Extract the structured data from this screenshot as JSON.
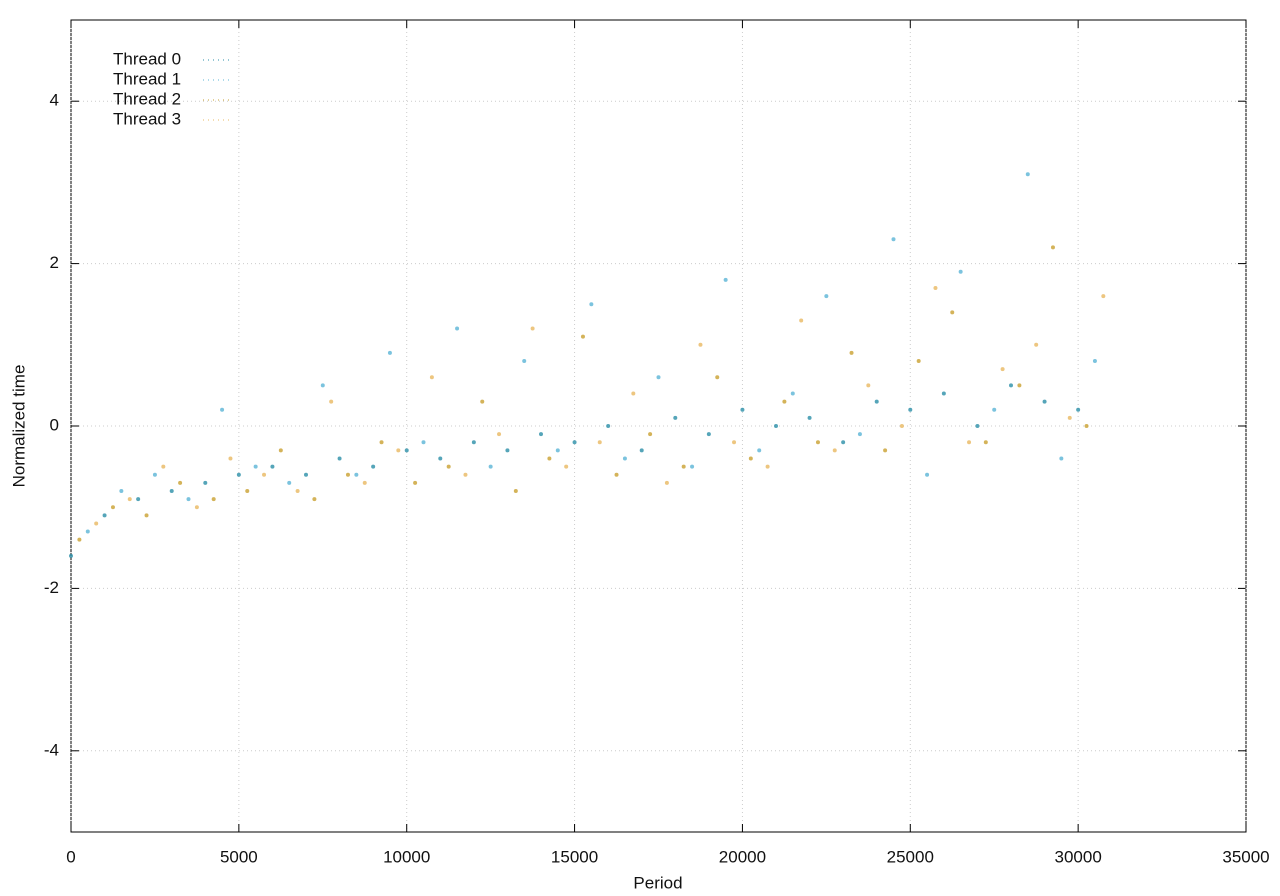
{
  "chart_data": {
    "type": "scatter",
    "xlabel": "Period",
    "ylabel": "Normalized time",
    "xlim": [
      0,
      35000
    ],
    "xticks": [
      0,
      5000,
      10000,
      15000,
      20000,
      25000,
      30000,
      35000
    ],
    "ylim": [
      -5,
      5
    ],
    "yticks": [
      -4,
      -2,
      0,
      2,
      4
    ],
    "grid": true,
    "legend": "top-left",
    "series": [
      {
        "name": "Thread 0",
        "color": "#2a8fa8",
        "x": [
          0,
          1000,
          2000,
          3000,
          4000,
          5000,
          6000,
          7000,
          8000,
          9000,
          10000,
          11000,
          12000,
          13000,
          14000,
          15000,
          16000,
          17000,
          18000,
          19000,
          20000,
          21000,
          22000,
          23000,
          24000,
          25000,
          26000,
          27000,
          28000,
          29000,
          30000
        ],
        "values": [
          -1.6,
          -1.1,
          -0.9,
          -0.8,
          -0.7,
          -0.6,
          -0.5,
          -0.6,
          -0.4,
          -0.5,
          -0.3,
          -0.4,
          -0.2,
          -0.3,
          -0.1,
          -0.2,
          0.0,
          -0.3,
          0.1,
          -0.1,
          0.2,
          0.0,
          0.1,
          -0.2,
          0.3,
          0.2,
          0.4,
          0.0,
          0.5,
          0.3,
          0.2
        ]
      },
      {
        "name": "Thread 1",
        "color": "#5ab4d6",
        "x": [
          500,
          1500,
          2500,
          3500,
          4500,
          5500,
          6500,
          7500,
          8500,
          9500,
          10500,
          11500,
          12500,
          13500,
          14500,
          15500,
          16500,
          17500,
          18500,
          19500,
          20500,
          21500,
          22500,
          23500,
          24500,
          25500,
          26500,
          27500,
          28500,
          29500,
          30500
        ],
        "values": [
          -1.3,
          -0.8,
          -0.6,
          -0.9,
          0.2,
          -0.5,
          -0.7,
          0.5,
          -0.6,
          0.9,
          -0.2,
          1.2,
          -0.5,
          0.8,
          -0.3,
          1.5,
          -0.4,
          0.6,
          -0.5,
          1.8,
          -0.3,
          0.4,
          1.6,
          -0.1,
          2.3,
          -0.6,
          1.9,
          0.2,
          3.1,
          -0.4,
          0.8
        ]
      },
      {
        "name": "Thread 2",
        "color": "#c9a030",
        "x": [
          250,
          1250,
          2250,
          3250,
          4250,
          5250,
          6250,
          7250,
          8250,
          9250,
          10250,
          11250,
          12250,
          13250,
          14250,
          15250,
          16250,
          17250,
          18250,
          19250,
          20250,
          21250,
          22250,
          23250,
          24250,
          25250,
          26250,
          27250,
          28250,
          29250,
          30250
        ],
        "values": [
          -1.4,
          -1.0,
          -1.1,
          -0.7,
          -0.9,
          -0.8,
          -0.3,
          -0.9,
          -0.6,
          -0.2,
          -0.7,
          -0.5,
          0.3,
          -0.8,
          -0.4,
          1.1,
          -0.6,
          -0.1,
          -0.5,
          0.6,
          -0.4,
          0.3,
          -0.2,
          0.9,
          -0.3,
          0.8,
          1.4,
          -0.2,
          0.5,
          2.2,
          0.0
        ]
      },
      {
        "name": "Thread 3",
        "color": "#e8b860",
        "x": [
          750,
          1750,
          2750,
          3750,
          4750,
          5750,
          6750,
          7750,
          8750,
          9750,
          10750,
          11750,
          12750,
          13750,
          14750,
          15750,
          16750,
          17750,
          18750,
          19750,
          20750,
          21750,
          22750,
          23750,
          24750,
          25750,
          26750,
          27750,
          28750,
          29750,
          30750
        ],
        "values": [
          -1.2,
          -0.9,
          -0.5,
          -1.0,
          -0.4,
          -0.6,
          -0.8,
          0.3,
          -0.7,
          -0.3,
          0.6,
          -0.6,
          -0.1,
          1.2,
          -0.5,
          -0.2,
          0.4,
          -0.7,
          1.0,
          -0.2,
          -0.5,
          1.3,
          -0.3,
          0.5,
          0.0,
          1.7,
          -0.2,
          0.7,
          1.0,
          0.1,
          1.6
        ]
      }
    ]
  }
}
